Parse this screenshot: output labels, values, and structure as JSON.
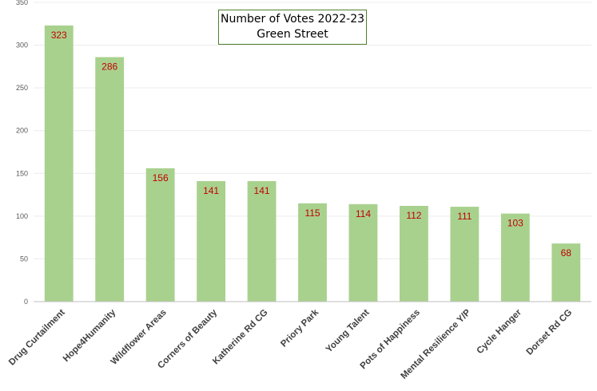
{
  "chart_data": {
    "type": "bar",
    "title": "Number of Votes 2022-23",
    "subtitle": "Green Street",
    "categories": [
      "Drug Curtailment",
      "Hope4Humanity",
      "Wildflower Areas",
      "Corners of Beauty",
      "Katherine Rd CG",
      "Priory Park",
      "Young Talent",
      "Pots of Happiness",
      "Mental Resilience Y/P",
      "Cycle Hanger",
      "Dorset Rd CG"
    ],
    "values": [
      323,
      286,
      156,
      141,
      141,
      115,
      114,
      112,
      111,
      103,
      68
    ],
    "ylim": [
      0,
      350
    ],
    "yticks": [
      0,
      50,
      100,
      150,
      200,
      250,
      300,
      350
    ],
    "xlabel": "",
    "ylabel": "",
    "grid": true,
    "legend": "none",
    "colors": {
      "bar": "#a9d18e",
      "data_label": "#c00000",
      "grid": "#ececec",
      "axis": "#bfbfbf"
    }
  }
}
